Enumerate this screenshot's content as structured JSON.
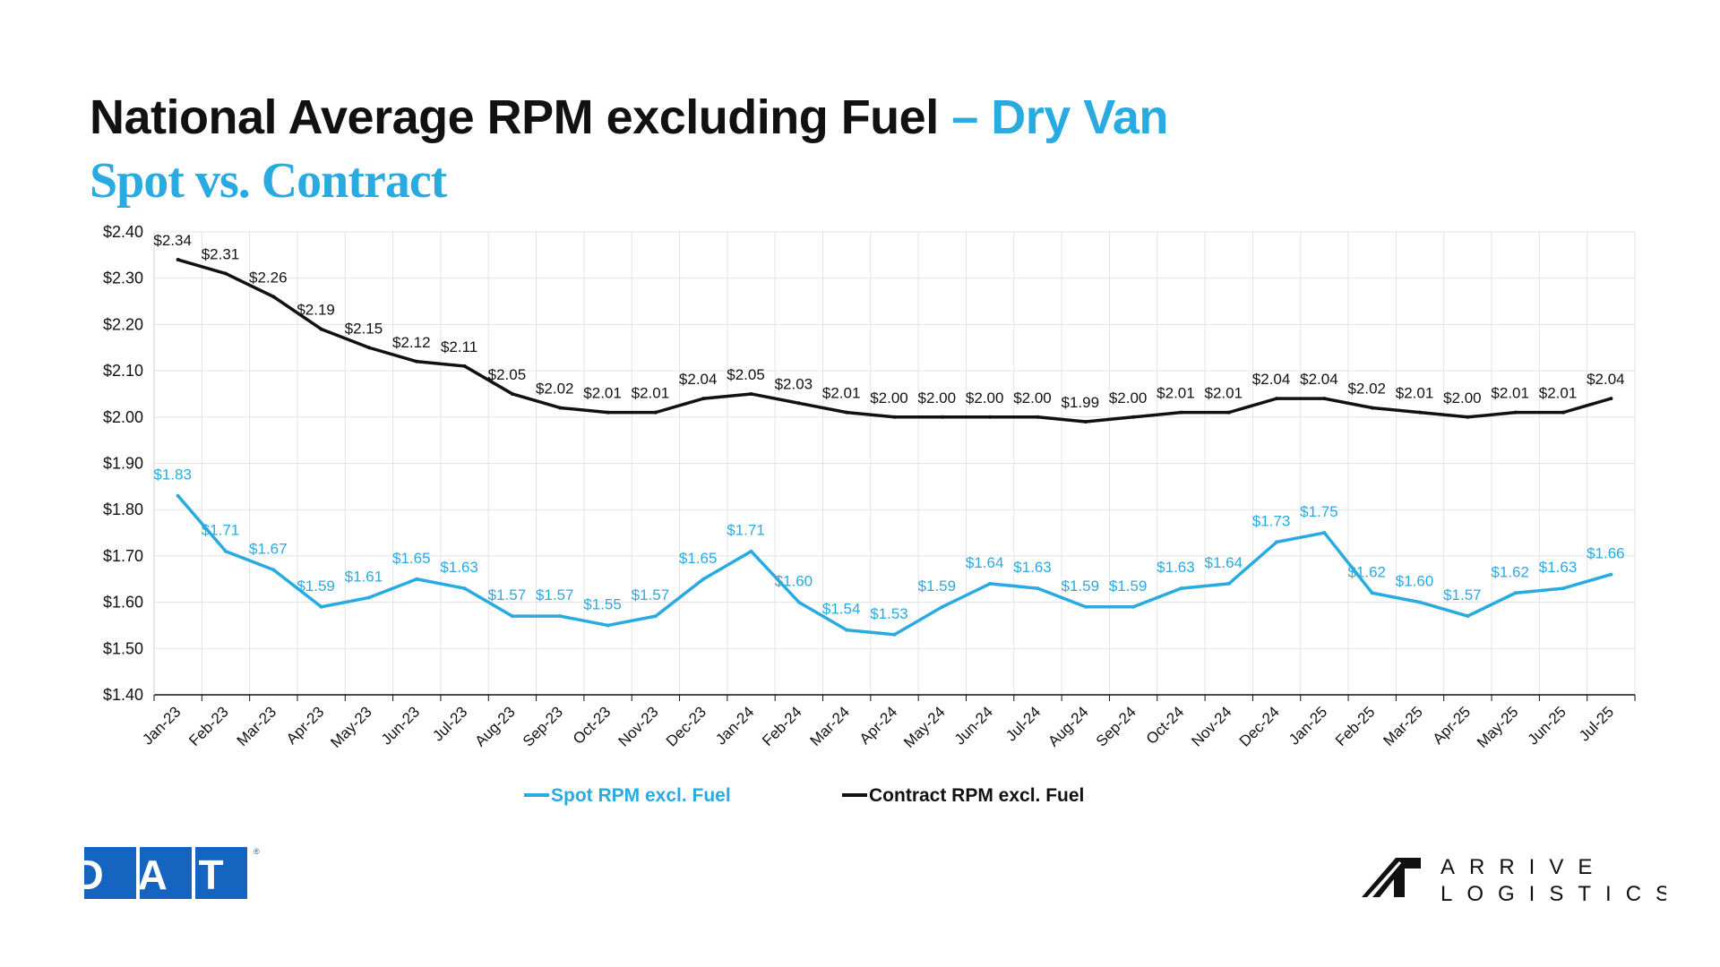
{
  "header": {
    "title": "National Average RPM excluding Fuel",
    "title_accent": "– Dry Van",
    "subtitle": "Spot vs. Contract"
  },
  "logos": {
    "left": "DAT",
    "right_line1": "ARRIVE",
    "right_line2": "LOGISTICS"
  },
  "colors": {
    "spot": "#29aae1",
    "contract": "#111111",
    "dat_blue": "#1565c0"
  },
  "chart_data": {
    "type": "line",
    "categories": [
      "Jan-23",
      "Feb-23",
      "Mar-23",
      "Apr-23",
      "May-23",
      "Jun-23",
      "Jul-23",
      "Aug-23",
      "Sep-23",
      "Oct-23",
      "Nov-23",
      "Dec-23",
      "Jan-24",
      "Feb-24",
      "Mar-24",
      "Apr-24",
      "May-24",
      "Jun-24",
      "Jul-24",
      "Aug-24",
      "Sep-24",
      "Oct-24",
      "Nov-24",
      "Dec-24",
      "Jan-25",
      "Feb-25",
      "Mar-25",
      "Apr-25",
      "May-25",
      "Jun-25",
      "Jul-25"
    ],
    "series": [
      {
        "name": "Spot RPM excl. Fuel",
        "color": "#29aae1",
        "values": [
          1.83,
          1.71,
          1.67,
          1.59,
          1.61,
          1.65,
          1.63,
          1.57,
          1.57,
          1.55,
          1.57,
          1.65,
          1.71,
          1.6,
          1.54,
          1.53,
          1.59,
          1.64,
          1.63,
          1.59,
          1.59,
          1.63,
          1.64,
          1.73,
          1.75,
          1.62,
          1.6,
          1.57,
          1.62,
          1.63,
          1.66
        ],
        "labels": [
          "$1.83",
          "$1.71",
          "$1.67",
          "$1.59",
          "$1.61",
          "$1.65",
          "$1.63",
          "$1.57",
          "$1.57",
          "$1.55",
          "$1.57",
          "$1.65",
          "$1.71",
          "$1.60",
          "$1.54",
          "$1.53",
          "$1.59",
          "$1.64",
          "$1.63",
          "$1.59",
          "$1.59",
          "$1.63",
          "$1.64",
          "$1.73",
          "$1.75",
          "$1.62",
          "$1.60",
          "$1.57",
          "$1.62",
          "$1.63",
          "$1.66"
        ]
      },
      {
        "name": "Contract RPM excl. Fuel",
        "color": "#111111",
        "values": [
          2.34,
          2.31,
          2.26,
          2.19,
          2.15,
          2.12,
          2.11,
          2.05,
          2.02,
          2.01,
          2.01,
          2.04,
          2.05,
          2.03,
          2.01,
          2.0,
          2.0,
          2.0,
          2.0,
          1.99,
          2.0,
          2.01,
          2.01,
          2.04,
          2.04,
          2.02,
          2.01,
          2.0,
          2.01,
          2.01,
          2.04
        ],
        "labels": [
          "$2.34",
          "$2.31",
          "$2.26",
          "$2.19",
          "$2.15",
          "$2.12",
          "$2.11",
          "$2.05",
          "$2.02",
          "$2.01",
          "$2.01",
          "$2.04",
          "$2.05",
          "$2.03",
          "$2.01",
          "$2.00",
          "$2.00",
          "$2.00",
          "$2.00",
          "$1.99",
          "$2.00",
          "$2.01",
          "$2.01",
          "$2.04",
          "$2.04",
          "$2.02",
          "$2.01",
          "$2.00",
          "$2.01",
          "$2.01",
          "$2.04"
        ]
      }
    ],
    "ylim": [
      1.4,
      2.4
    ],
    "yticks": [
      1.4,
      1.5,
      1.6,
      1.7,
      1.8,
      1.9,
      2.0,
      2.1,
      2.2,
      2.3,
      2.4
    ],
    "ytick_labels": [
      "$1.40",
      "$1.50",
      "$1.60",
      "$1.70",
      "$1.80",
      "$1.90",
      "$2.00",
      "$2.10",
      "$2.20",
      "$2.30",
      "$2.40"
    ],
    "grid": true,
    "legend_position": "bottom"
  }
}
